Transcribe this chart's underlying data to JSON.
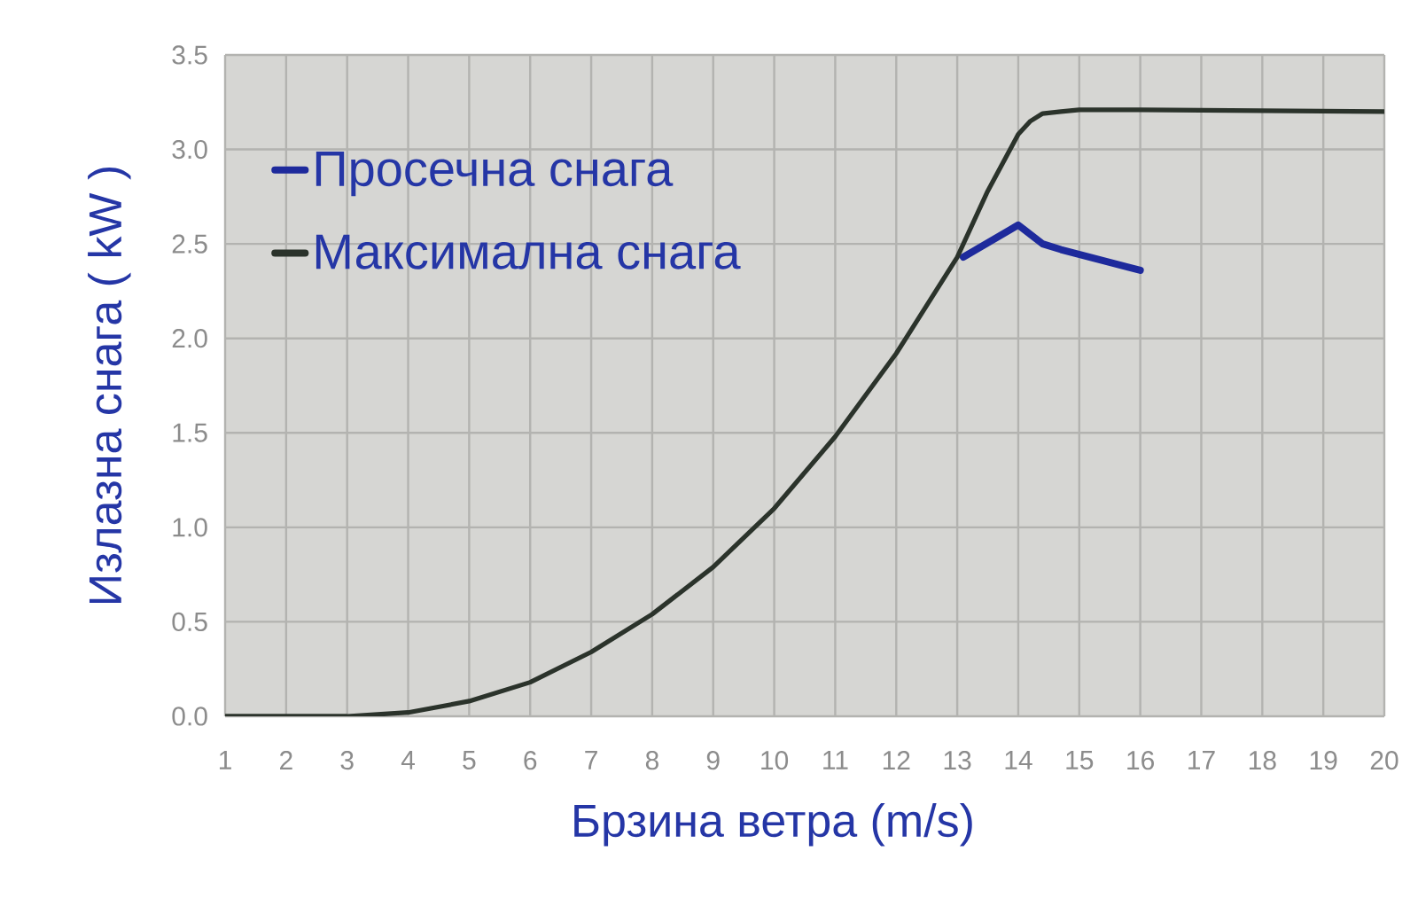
{
  "chart_data": {
    "type": "line",
    "xlabel": "Брзина ветра (m/s)",
    "ylabel": "Излазна снага ( kW )",
    "xlim": [
      1,
      20
    ],
    "ylim": [
      0,
      3.5
    ],
    "xticks": [
      1,
      2,
      3,
      4,
      5,
      6,
      7,
      8,
      9,
      10,
      11,
      12,
      13,
      14,
      15,
      16,
      17,
      18,
      19,
      20
    ],
    "yticks": [
      {
        "value": 0,
        "label": "0.0"
      },
      {
        "value": 0.5,
        "label": "0.5"
      },
      {
        "value": 1,
        "label": "1.0"
      },
      {
        "value": 1.5,
        "label": "1.5"
      },
      {
        "value": 2,
        "label": "2.0"
      },
      {
        "value": 2.5,
        "label": "2.5"
      },
      {
        "value": 3,
        "label": "3.0"
      },
      {
        "value": 3.5,
        "label": "3.5"
      }
    ],
    "grid": true,
    "legend": "top left",
    "series": [
      {
        "name": "Просечна снага",
        "color": "#1e2a9c",
        "x": [
          13.1,
          14.0,
          14.4,
          14.7,
          16.0
        ],
        "values": [
          2.43,
          2.6,
          2.5,
          2.47,
          2.36
        ]
      },
      {
        "name": "Максимална снага",
        "color": "#2b332b",
        "x": [
          1,
          2,
          3,
          4,
          5,
          6,
          7,
          8,
          9,
          10,
          11,
          12,
          13,
          13.5,
          14,
          14.2,
          14.4,
          14.7,
          15,
          16,
          20
        ],
        "values": [
          0.0,
          0.0,
          0.0,
          0.02,
          0.08,
          0.18,
          0.34,
          0.54,
          0.79,
          1.1,
          1.48,
          1.92,
          2.43,
          2.78,
          3.08,
          3.15,
          3.19,
          3.2,
          3.21,
          3.21,
          3.2
        ]
      }
    ]
  }
}
